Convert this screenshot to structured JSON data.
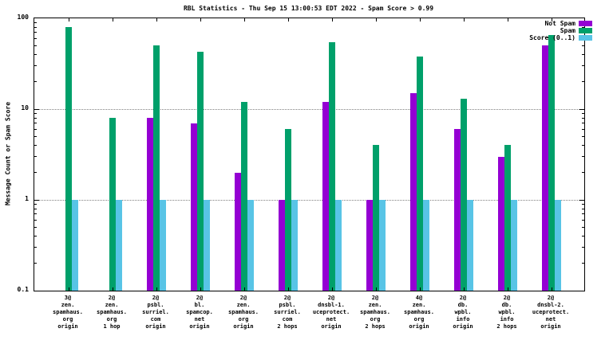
{
  "title": "RBL Statistics - Thu Sep 15 13:00:53 EDT 2022 - Spam Score > 0.99",
  "ylabel": "Message Count or Spam Score",
  "legend": [
    {
      "label": "Not Spam",
      "color": "#9400d3"
    },
    {
      "label": "Spam",
      "color": "#00a06a"
    },
    {
      "label": "Score (0..1)",
      "color": "#58c4e6"
    }
  ],
  "chart_data": {
    "type": "bar",
    "log_y": true,
    "ylim": [
      0.1,
      100
    ],
    "yticks": [
      0.1,
      1,
      10,
      100
    ],
    "grid": "horizontal-dotted",
    "legend_position": "top-right",
    "title": "RBL Statistics - Thu Sep 15 13:00:53 EDT 2022 - Spam Score > 0.99",
    "xlabel": "",
    "ylabel": "Message Count or Spam Score",
    "categories": [
      [
        "3@",
        "zen.",
        "spamhaus.",
        "org",
        "origin"
      ],
      [
        "2@",
        "zen.",
        "spamhaus.",
        "org",
        "1 hop"
      ],
      [
        "2@",
        "psbl.",
        "surriel.",
        "com",
        "origin"
      ],
      [
        "2@",
        "bl.",
        "spamcop.",
        "net",
        "origin"
      ],
      [
        "2@",
        "zen.",
        "spamhaus.",
        "org",
        "origin"
      ],
      [
        "2@",
        "psbl.",
        "surriel.",
        "com",
        "2 hops"
      ],
      [
        "2@",
        "dnsbl-1.",
        "uceprotect.",
        "net",
        "origin"
      ],
      [
        "2@",
        "zen.",
        "spamhaus.",
        "org",
        "2 hops"
      ],
      [
        "4@",
        "zen.",
        "spamhaus.",
        "org",
        "origin"
      ],
      [
        "2@",
        "db.",
        "wpbl.",
        "info",
        "origin"
      ],
      [
        "2@",
        "db.",
        "wpbl.",
        "info",
        "2 hops"
      ],
      [
        "2@",
        "dnsbl-2.",
        "uceprotect.",
        "net",
        "origin"
      ]
    ],
    "series": [
      {
        "name": "Not Spam",
        "color": "#9400d3",
        "values": [
          null,
          null,
          8,
          7,
          2,
          1,
          12,
          1,
          15,
          6,
          3,
          50
        ]
      },
      {
        "name": "Spam",
        "color": "#00a06a",
        "values": [
          80,
          8,
          50,
          43,
          12,
          6,
          55,
          4,
          38,
          13,
          4,
          65
        ]
      },
      {
        "name": "Score (0..1)",
        "color": "#58c4e6",
        "values": [
          1,
          1,
          1,
          1,
          1,
          1,
          1,
          1,
          1,
          1,
          1,
          1
        ]
      }
    ]
  }
}
